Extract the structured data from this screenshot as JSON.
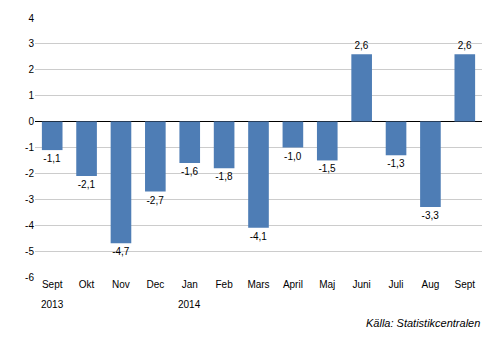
{
  "chart_data": {
    "type": "bar",
    "categories": [
      "Sept",
      "Okt",
      "Nov",
      "Dec",
      "Jan",
      "Feb",
      "Mars",
      "April",
      "Maj",
      "Juni",
      "Juli",
      "Aug",
      "Sept"
    ],
    "values": [
      -1.1,
      -2.1,
      -4.7,
      -2.7,
      -1.6,
      -1.8,
      -4.1,
      -1.0,
      -1.5,
      2.6,
      -1.3,
      -3.3,
      2.6
    ],
    "value_labels": [
      "-1,1",
      "-2,1",
      "-4,7",
      "-2,7",
      "-1,6",
      "-1,8",
      "-4,1",
      "-1,0",
      "-1,5",
      "2,6",
      "-1,3",
      "-3,3",
      "2,6"
    ],
    "data_labels": true,
    "color": "#4e7db5",
    "ylim": [
      -6,
      4
    ],
    "yticks": [
      -6,
      -5,
      -4,
      -3,
      -2,
      -1,
      0,
      1,
      2,
      3,
      4
    ],
    "grid": true,
    "annotations": [
      {
        "text": "2013",
        "index": 0
      },
      {
        "text": "2014",
        "index": 4
      }
    ],
    "source": "Källa: Statistikcentralen"
  }
}
